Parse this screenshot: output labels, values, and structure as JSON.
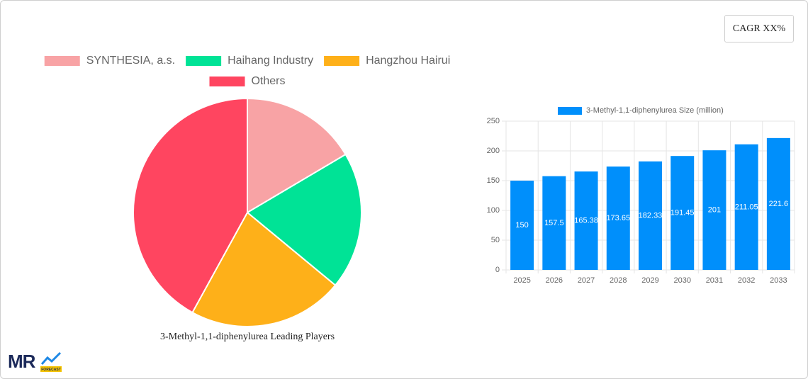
{
  "cagr_label": "CAGR XX%",
  "logo": {
    "text": "MR",
    "subtext": "FORECAST"
  },
  "chart_data": [
    {
      "type": "pie",
      "title": "3-Methyl-1,1-diphenylurea Leading Players",
      "categories": [
        "SYNTHESIA, a.s.",
        "Haihang Industry",
        "Hangzhou Hairui",
        "Others"
      ],
      "values": [
        16.5,
        19.5,
        22,
        42
      ],
      "colors": [
        "#f8a3a5",
        "#00e396",
        "#feb019",
        "#ff4560"
      ]
    },
    {
      "type": "bar",
      "categories": [
        "2025",
        "2026",
        "2027",
        "2028",
        "2029",
        "2030",
        "2031",
        "2032",
        "2033"
      ],
      "series": [
        {
          "name": "3-Methyl-1,1-diphenylurea Size (million)",
          "color": "#008ffb",
          "values": [
            150,
            157.5,
            165.38,
            173.65,
            182.33,
            191.45,
            201,
            211.05,
            221.6
          ]
        }
      ],
      "ylim": [
        0,
        250
      ],
      "yticks": [
        0,
        50,
        100,
        150,
        200,
        250
      ],
      "grid": true
    }
  ]
}
